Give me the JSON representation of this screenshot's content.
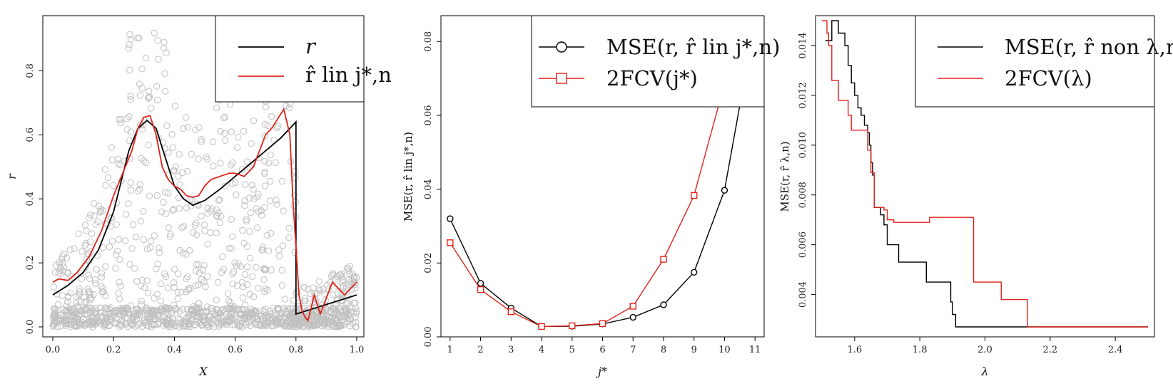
{
  "chart_data": [
    {
      "type": "scatter",
      "xlabel": "X",
      "ylabel": "r",
      "xlim": [
        0.0,
        1.0
      ],
      "ylim": [
        0.0,
        0.95
      ],
      "xticks": [
        "0.0",
        "0.2",
        "0.4",
        "0.6",
        "0.8",
        "1.0"
      ],
      "yticks": [
        "0.0",
        "0.2",
        "0.4",
        "0.6",
        "0.8"
      ],
      "legend": {
        "position": "top-right",
        "entries": [
          "r",
          "r̂ lin j*,n"
        ]
      },
      "colors": {
        "scatter": "#c0c0c0",
        "r": "#000000",
        "fit": "#e0231b"
      },
      "series": [
        {
          "name": "r",
          "x": [
            0.0,
            0.05,
            0.1,
            0.15,
            0.2,
            0.25,
            0.28,
            0.31,
            0.34,
            0.37,
            0.4,
            0.43,
            0.46,
            0.5,
            0.55,
            0.6,
            0.65,
            0.7,
            0.75,
            0.8,
            0.8,
            0.85,
            0.9,
            0.95,
            1.0
          ],
          "y": [
            0.1,
            0.13,
            0.17,
            0.24,
            0.36,
            0.55,
            0.62,
            0.645,
            0.62,
            0.53,
            0.44,
            0.4,
            0.38,
            0.395,
            0.43,
            0.47,
            0.51,
            0.55,
            0.59,
            0.64,
            0.04,
            0.055,
            0.07,
            0.085,
            0.1
          ]
        },
        {
          "name": "r̂ lin j*,n",
          "x": [
            0.0,
            0.02,
            0.05,
            0.08,
            0.12,
            0.16,
            0.2,
            0.23,
            0.26,
            0.28,
            0.3,
            0.32,
            0.34,
            0.36,
            0.38,
            0.4,
            0.42,
            0.44,
            0.46,
            0.48,
            0.5,
            0.52,
            0.55,
            0.58,
            0.6,
            0.63,
            0.66,
            0.68,
            0.7,
            0.72,
            0.74,
            0.76,
            0.78,
            0.79,
            0.8,
            0.81,
            0.82,
            0.83,
            0.84,
            0.85,
            0.86,
            0.87,
            0.88,
            0.9,
            0.92,
            0.94,
            0.96,
            0.98,
            1.0
          ],
          "y": [
            0.14,
            0.15,
            0.145,
            0.17,
            0.22,
            0.3,
            0.41,
            0.48,
            0.55,
            0.62,
            0.655,
            0.66,
            0.6,
            0.5,
            0.46,
            0.44,
            0.43,
            0.41,
            0.405,
            0.41,
            0.44,
            0.46,
            0.47,
            0.48,
            0.48,
            0.47,
            0.5,
            0.55,
            0.6,
            0.62,
            0.65,
            0.68,
            0.6,
            0.4,
            0.25,
            0.1,
            0.05,
            0.03,
            0.02,
            0.06,
            0.1,
            0.07,
            0.04,
            0.09,
            0.14,
            0.12,
            0.1,
            0.12,
            0.14
          ]
        }
      ]
    },
    {
      "type": "line",
      "xlabel": "j*",
      "ylabel": "MSE(r, r̂ lin j*,n)",
      "xlim": [
        0.7,
        11.3
      ],
      "ylim": [
        0.0,
        0.087
      ],
      "xticks": [
        "1",
        "2",
        "3",
        "4",
        "5",
        "6",
        "7",
        "8",
        "9",
        "10",
        "11"
      ],
      "yticks": [
        "0.00",
        "0.02",
        "0.04",
        "0.06",
        "0.08"
      ],
      "legend": {
        "position": "top-right",
        "entries": [
          "MSE(r, r̂ lin j*,n)",
          "2FCV(j*)"
        ]
      },
      "colors": {
        "mse": "#000000",
        "cv": "#e0231b"
      },
      "x": [
        1,
        2,
        3,
        4,
        5,
        6,
        7,
        8,
        9,
        10,
        11
      ],
      "series": [
        {
          "name": "MSE(r, r̂ lin j*,n)",
          "marker": "circle",
          "values": [
            0.032,
            0.0145,
            0.0078,
            0.0028,
            0.0029,
            0.0035,
            0.0053,
            0.0087,
            0.0175,
            0.0397,
            0.0855
          ]
        },
        {
          "name": "2FCV(j*)",
          "marker": "square",
          "values": [
            0.0255,
            0.0128,
            0.0068,
            0.0028,
            0.003,
            0.0036,
            0.0083,
            0.021,
            0.0383,
            0.0685,
            0.0855
          ]
        }
      ]
    },
    {
      "type": "line",
      "step": true,
      "xlabel": "λ",
      "ylabel": "MSE(r, r̂ λ,n)",
      "xlim": [
        1.48,
        2.52
      ],
      "ylim": [
        0.0023,
        0.0152
      ],
      "xticks": [
        "1.6",
        "1.8",
        "2.0",
        "2.2",
        "2.4"
      ],
      "yticks": [
        "0.004",
        "0.006",
        "0.008",
        "0.010",
        "0.012",
        "0.014"
      ],
      "legend": {
        "position": "top-right",
        "entries": [
          "MSE(r, r̂ non λ,n)",
          "2FCV(λ)"
        ]
      },
      "colors": {
        "mse": "#000000",
        "cv": "#e0231b"
      },
      "series": [
        {
          "name": "MSE(r, r̂ non λ,n)",
          "x": [
            1.51,
            1.53,
            1.55,
            1.57,
            1.58,
            1.59,
            1.6,
            1.61,
            1.62,
            1.63,
            1.64,
            1.645,
            1.65,
            1.655,
            1.66,
            1.68,
            1.69,
            1.7,
            1.735,
            1.82,
            1.895,
            1.9,
            1.91,
            2.5
          ],
          "y": [
            0.0142,
            0.015,
            0.0145,
            0.014,
            0.0132,
            0.0125,
            0.012,
            0.0115,
            0.0112,
            0.0108,
            0.0105,
            0.01,
            0.0093,
            0.0088,
            0.0075,
            0.0072,
            0.0068,
            0.006,
            0.0053,
            0.0045,
            0.0037,
            0.0032,
            0.0027,
            0.0027
          ]
        },
        {
          "name": "2FCV(λ)",
          "x": [
            1.5,
            1.515,
            1.52,
            1.53,
            1.55,
            1.58,
            1.59,
            1.6,
            1.64,
            1.65,
            1.66,
            1.69,
            1.7,
            1.72,
            1.8,
            1.82,
            1.83,
            1.96,
            1.965,
            2.05,
            2.13,
            2.5
          ],
          "y": [
            0.015,
            0.0145,
            0.014,
            0.0126,
            0.0118,
            0.0112,
            0.0106,
            0.0106,
            0.0098,
            0.0089,
            0.0075,
            0.0074,
            0.007,
            0.0069,
            0.0069,
            0.0069,
            0.0071,
            0.0071,
            0.0045,
            0.0038,
            0.0027,
            0.0027
          ]
        }
      ]
    }
  ]
}
